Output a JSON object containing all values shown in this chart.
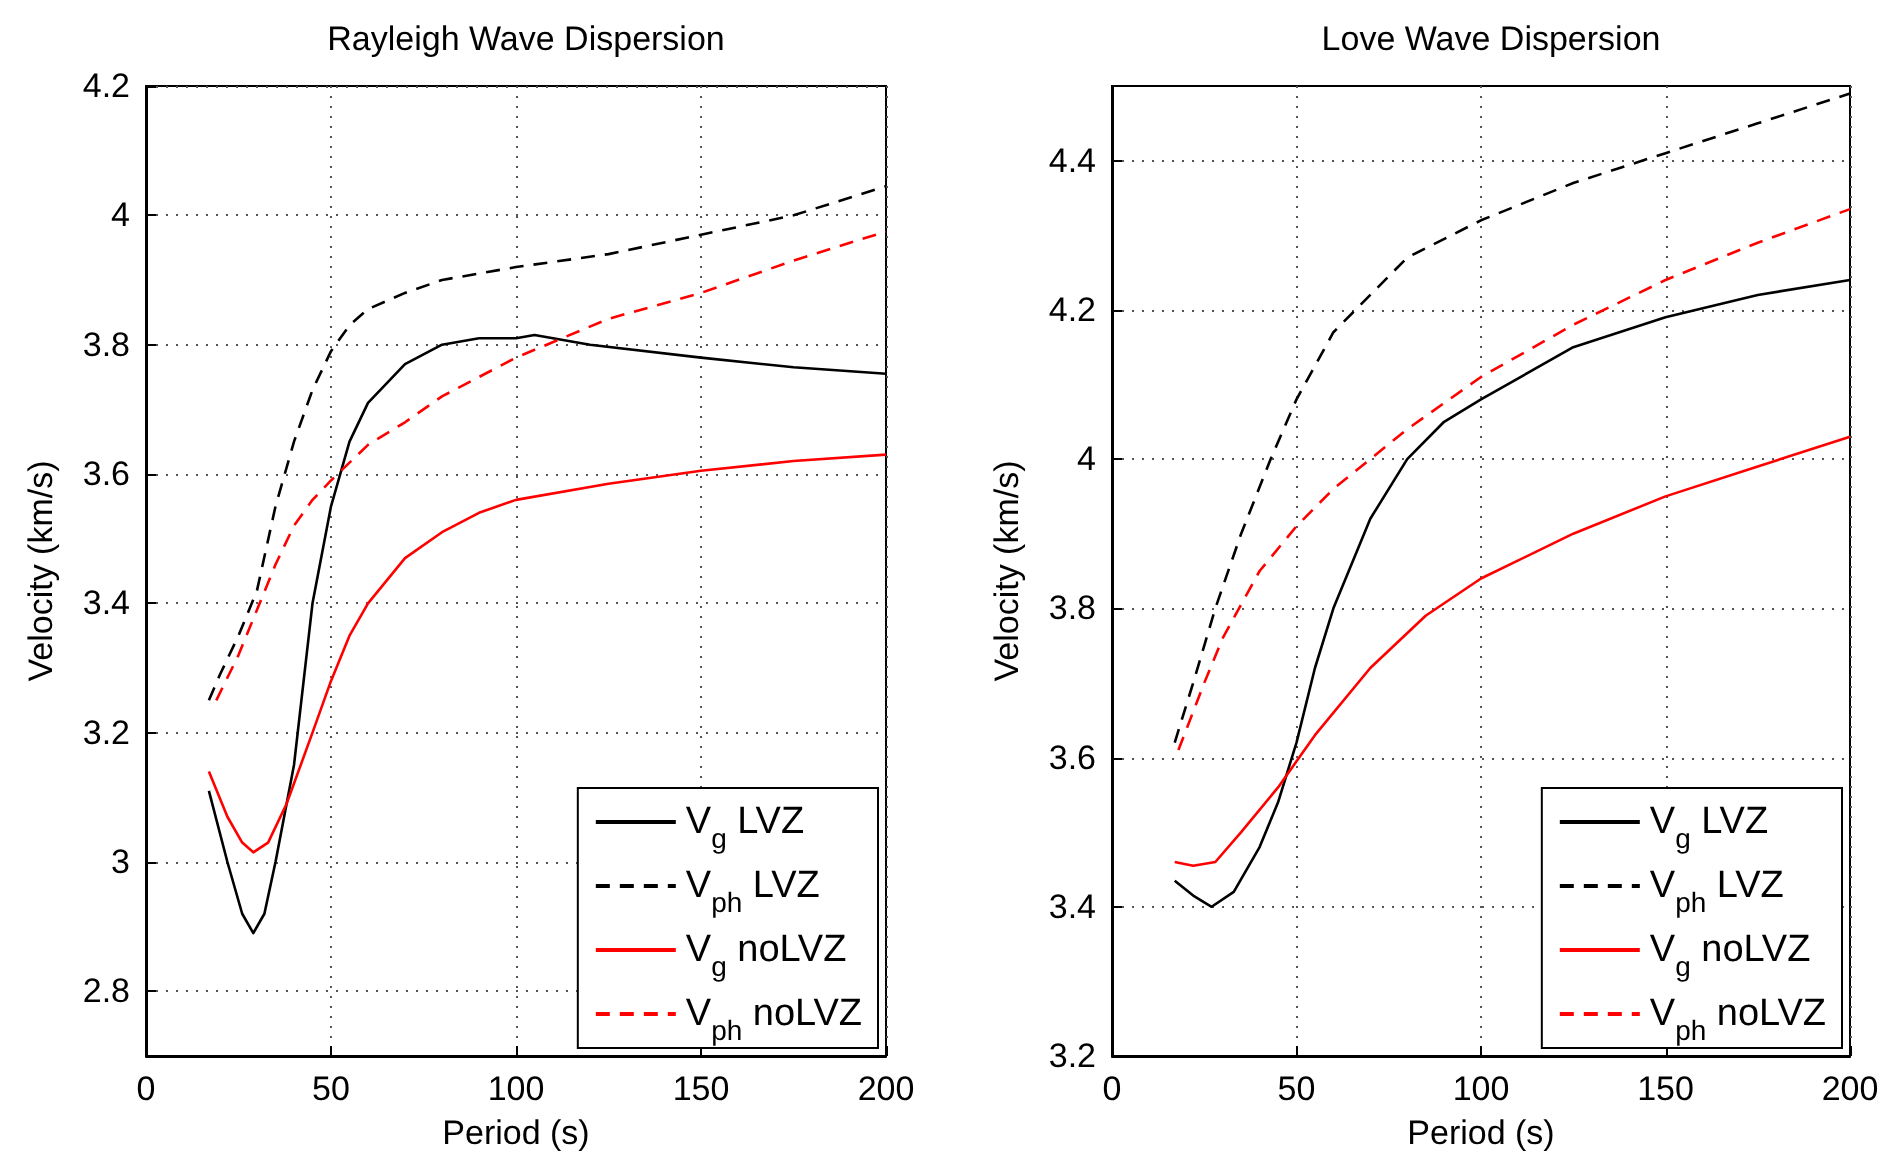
{
  "chart_data": [
    {
      "type": "line",
      "title": "Rayleigh Wave Dispersion",
      "xlabel": "Period (s)",
      "ylabel": "Velocity (km/s)",
      "xlim": [
        0,
        200
      ],
      "xticks": [
        0,
        50,
        100,
        150,
        200
      ],
      "ylim": [
        2.7,
        4.2
      ],
      "yticks": [
        2.8,
        3,
        3.2,
        3.4,
        3.6,
        3.8,
        4,
        4.2
      ],
      "grid": true,
      "legend": "bottom right",
      "marker": "none",
      "series": [
        {
          "name": "V$_{g}$ LVZ",
          "color": "#000000",
          "line_style": "solid",
          "x": [
            17,
            22,
            26,
            29,
            32,
            35,
            40,
            45,
            50,
            55,
            60,
            70,
            80,
            90,
            100,
            105,
            120,
            150,
            175,
            200
          ],
          "values": [
            3.11,
            3.0,
            2.92,
            2.89,
            2.92,
            3.0,
            3.15,
            3.4,
            3.55,
            3.65,
            3.71,
            3.77,
            3.8,
            3.81,
            3.81,
            3.815,
            3.8,
            3.78,
            3.765,
            3.755
          ]
        },
        {
          "name": "V$_{ph}$ LVZ",
          "color": "#000000",
          "line_style": "dashed",
          "x": [
            17,
            20,
            25,
            30,
            35,
            40,
            45,
            50,
            55,
            60,
            70,
            80,
            100,
            125,
            150,
            175,
            200
          ],
          "values": [
            3.25,
            3.29,
            3.35,
            3.42,
            3.55,
            3.65,
            3.73,
            3.79,
            3.83,
            3.855,
            3.88,
            3.9,
            3.92,
            3.94,
            3.97,
            4.0,
            4.045
          ]
        },
        {
          "name": "V$_{g}$ noLVZ",
          "color": "#ff0000",
          "line_style": "solid",
          "x": [
            17,
            22,
            26,
            29,
            33,
            38,
            45,
            50,
            55,
            60,
            70,
            80,
            90,
            100,
            125,
            150,
            175,
            200
          ],
          "values": [
            3.14,
            3.07,
            3.03,
            3.015,
            3.03,
            3.09,
            3.2,
            3.28,
            3.35,
            3.4,
            3.47,
            3.51,
            3.54,
            3.56,
            3.585,
            3.605,
            3.62,
            3.63
          ]
        },
        {
          "name": "V$_{ph}$ noLVZ",
          "color": "#ff0000",
          "line_style": "dashed",
          "x": [
            19,
            25,
            30,
            35,
            40,
            45,
            50,
            60,
            70,
            80,
            100,
            125,
            150,
            175,
            200
          ],
          "values": [
            3.25,
            3.32,
            3.39,
            3.46,
            3.52,
            3.56,
            3.59,
            3.645,
            3.68,
            3.72,
            3.78,
            3.84,
            3.88,
            3.93,
            3.975
          ]
        }
      ]
    },
    {
      "type": "line",
      "title": "Love Wave Dispersion",
      "xlabel": "Period (s)",
      "ylabel": "Velocity (km/s)",
      "xlim": [
        0,
        200
      ],
      "xticks": [
        0,
        50,
        100,
        150,
        200
      ],
      "ylim": [
        3.2,
        4.5
      ],
      "yticks": [
        3.2,
        3.4,
        3.6,
        3.8,
        4,
        4.2,
        4.4
      ],
      "grid": true,
      "legend": "bottom right",
      "marker": "none",
      "series": [
        {
          "name": "V$_{g}$ LVZ",
          "color": "#000000",
          "line_style": "solid",
          "x": [
            17,
            22,
            27,
            33,
            40,
            45,
            50,
            55,
            60,
            70,
            80,
            90,
            100,
            125,
            150,
            175,
            200
          ],
          "values": [
            3.435,
            3.415,
            3.4,
            3.42,
            3.48,
            3.54,
            3.62,
            3.72,
            3.8,
            3.92,
            4.0,
            4.05,
            4.08,
            4.15,
            4.19,
            4.22,
            4.24
          ]
        },
        {
          "name": "V$_{ph}$ LVZ",
          "color": "#000000",
          "line_style": "dashed",
          "x": [
            17,
            22,
            28,
            35,
            43,
            50,
            60,
            70,
            80,
            100,
            125,
            150,
            175,
            200
          ],
          "values": [
            3.62,
            3.7,
            3.8,
            3.9,
            4.0,
            4.08,
            4.17,
            4.22,
            4.27,
            4.32,
            4.37,
            4.41,
            4.45,
            4.49
          ]
        },
        {
          "name": "V$_{g}$ noLVZ",
          "color": "#ff0000",
          "line_style": "solid",
          "x": [
            17,
            22,
            28,
            35,
            45,
            55,
            70,
            85,
            100,
            125,
            150,
            175,
            200
          ],
          "values": [
            3.46,
            3.455,
            3.46,
            3.5,
            3.56,
            3.63,
            3.72,
            3.79,
            3.84,
            3.9,
            3.95,
            3.99,
            4.03
          ]
        },
        {
          "name": "V$_{ph}$ noLVZ",
          "color": "#ff0000",
          "line_style": "dashed",
          "x": [
            18,
            25,
            30,
            40,
            50,
            60,
            70,
            80,
            100,
            125,
            150,
            175,
            200
          ],
          "values": [
            3.61,
            3.7,
            3.76,
            3.85,
            3.91,
            3.96,
            4.0,
            4.04,
            4.11,
            4.18,
            4.24,
            4.29,
            4.335
          ]
        }
      ]
    }
  ]
}
